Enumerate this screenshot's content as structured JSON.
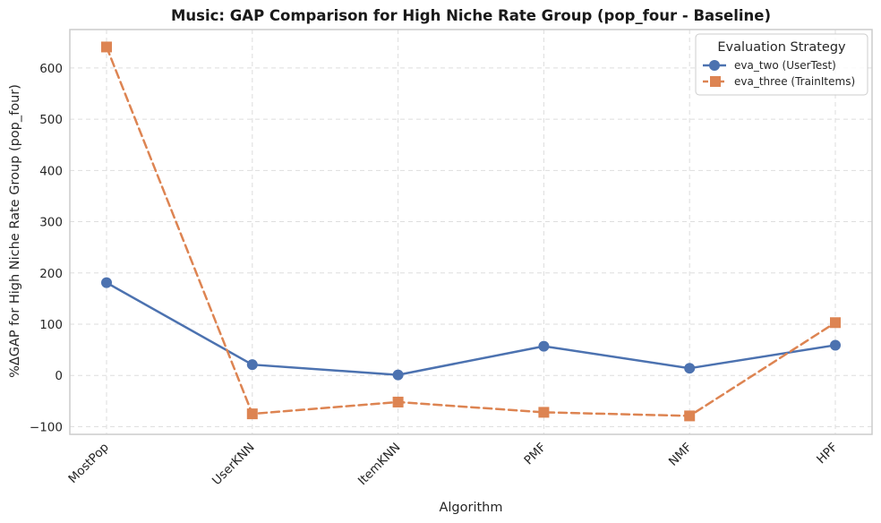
{
  "chart_data": {
    "type": "line",
    "title": "Music: GAP Comparison for High Niche Rate Group (pop_four - Baseline)",
    "xlabel": "Algorithm",
    "ylabel": "%ΔGAP for High Niche Rate Group (pop_four)",
    "categories": [
      "MostPop",
      "UserKNN",
      "ItemKNN",
      "PMF",
      "NMF",
      "HPF"
    ],
    "ylim": [
      -115,
      675
    ],
    "yticks": [
      -100,
      0,
      100,
      200,
      300,
      400,
      500,
      600
    ],
    "grid": true,
    "legend": {
      "title": "Evaluation Strategy",
      "position": "top-right"
    },
    "series": [
      {
        "name": "eva_two (UserTest)",
        "values": [
          181,
          21,
          1,
          57,
          14,
          59
        ],
        "color": "#4c72b0",
        "marker": "circle",
        "linestyle": "solid"
      },
      {
        "name": "eva_three (TrainItems)",
        "values": [
          641,
          -75,
          -52,
          -72,
          -79,
          103
        ],
        "color": "#dd8452",
        "marker": "square",
        "linestyle": "dashed"
      }
    ]
  }
}
